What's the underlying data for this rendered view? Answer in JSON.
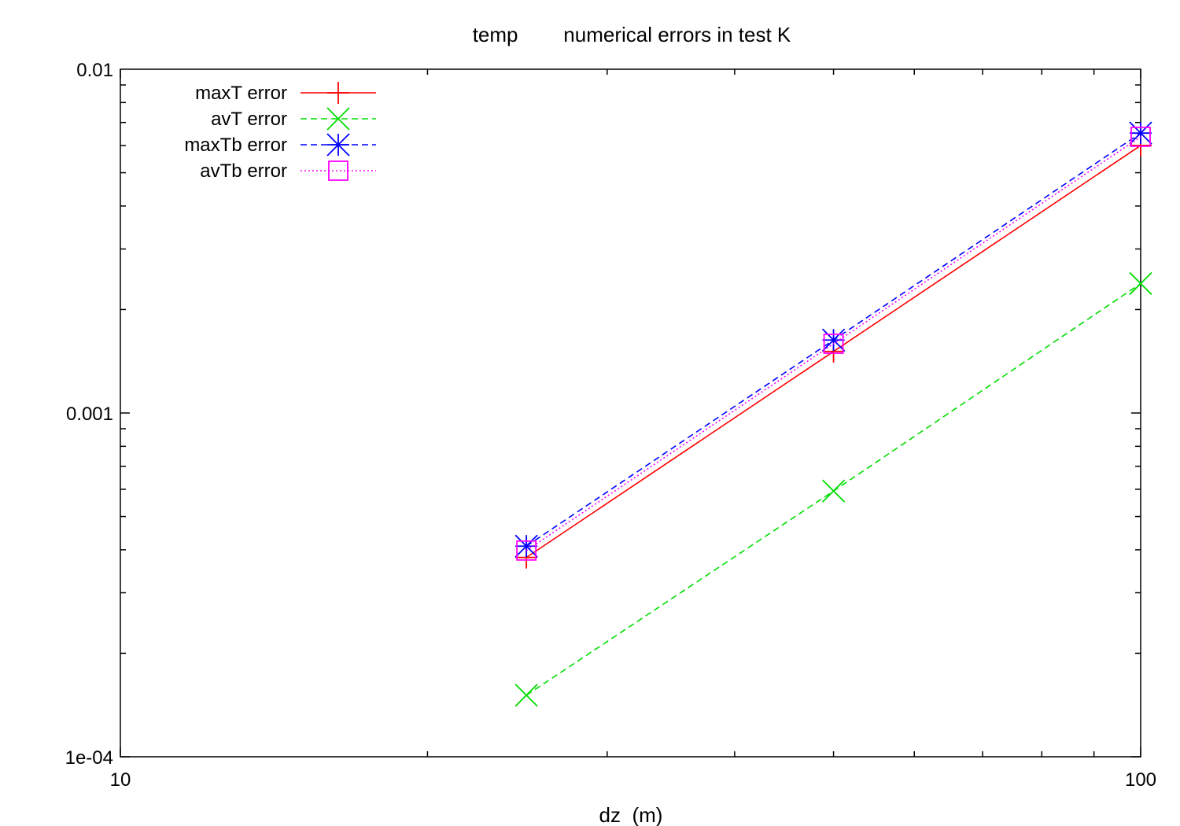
{
  "chart_data": {
    "type": "line",
    "title": "temp        numerical errors in test K",
    "xlabel": "dz  (m)",
    "ylabel": "",
    "xscale": "log",
    "yscale": "log",
    "xlim": [
      10,
      100
    ],
    "ylim": [
      0.0001,
      0.01
    ],
    "x_ticks": [
      {
        "value": 10,
        "label": "10"
      },
      {
        "value": 100,
        "label": "100"
      }
    ],
    "y_ticks": [
      {
        "value": 0.01,
        "label": "0.01"
      },
      {
        "value": 0.001,
        "label": "0.001"
      },
      {
        "value": 0.0001,
        "label": "1e-04"
      }
    ],
    "grid": false,
    "legend_position": "top-left",
    "x": [
      25,
      50,
      100
    ],
    "series": [
      {
        "name": "maxT error",
        "values": [
          0.00038,
          0.00151,
          0.006
        ],
        "color": "#ff0000",
        "dash": "solid",
        "marker": "plus"
      },
      {
        "name": "avT error",
        "values": [
          0.000151,
          0.000593,
          0.00238
        ],
        "color": "#00dd00",
        "dash": "dashed",
        "marker": "cross"
      },
      {
        "name": "maxTb error",
        "values": [
          0.00041,
          0.00163,
          0.00652
        ],
        "color": "#0000ff",
        "dash": "dashed",
        "marker": "star"
      },
      {
        "name": "avTb error",
        "values": [
          0.000398,
          0.00159,
          0.00636
        ],
        "color": "#ff00ff",
        "dash": "dotted",
        "marker": "square"
      }
    ]
  }
}
